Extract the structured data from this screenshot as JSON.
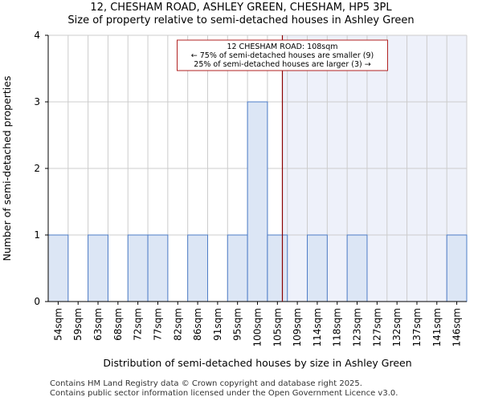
{
  "title_line1": "12, CHESHAM ROAD, ASHLEY GREEN, CHESHAM, HP5 3PL",
  "title_line2": "Size of property relative to semi-detached houses in Ashley Green",
  "footer_line1": "Contains HM Land Registry data © Crown copyright and database right 2025.",
  "footer_line2": "Contains public sector information licensed under the Open Government Licence v3.0.",
  "colors": {
    "bar_fill": "#dce6f5",
    "bar_stroke": "#4d7cc7",
    "highlight_fill": "#eef1fa",
    "marker_line": "#8b0000",
    "annotation_border": "#b22222",
    "grid": "#cccccc"
  },
  "chart_data": {
    "type": "bar",
    "title": "Size of property relative to semi-detached houses in Ashley Green",
    "xlabel": "Distribution of semi-detached houses by size in Ashley Green",
    "ylabel": "Number of semi-detached properties",
    "categories": [
      "54sqm",
      "59sqm",
      "63sqm",
      "68sqm",
      "72sqm",
      "77sqm",
      "82sqm",
      "86sqm",
      "91sqm",
      "95sqm",
      "100sqm",
      "105sqm",
      "109sqm",
      "114sqm",
      "118sqm",
      "123sqm",
      "127sqm",
      "132sqm",
      "137sqm",
      "141sqm",
      "146sqm"
    ],
    "values": [
      1,
      0,
      1,
      0,
      1,
      1,
      0,
      1,
      0,
      1,
      3,
      1,
      0,
      1,
      0,
      1,
      0,
      0,
      0,
      0,
      1
    ],
    "ylim": [
      0,
      4
    ],
    "yticks": [
      0,
      1,
      2,
      3,
      4
    ],
    "grid": true,
    "marker": {
      "value": 108,
      "label": "12 CHESHAM ROAD: 108sqm"
    },
    "annotation": {
      "line1": "12 CHESHAM ROAD: 108sqm",
      "line2": "← 75% of semi-detached houses are smaller (9)",
      "line3": "25% of semi-detached houses are larger (3) →"
    }
  }
}
